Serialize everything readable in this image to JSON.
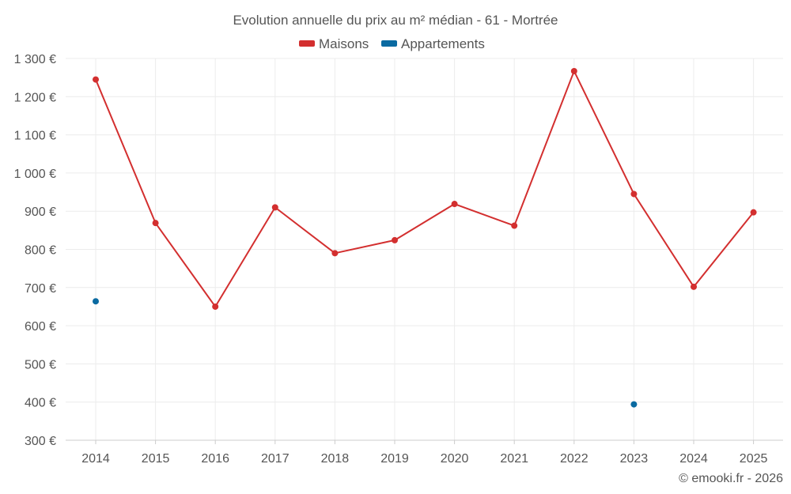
{
  "chart_data": {
    "type": "line",
    "title": "Evolution annuelle du prix au m² médian - 61 - Mortrée",
    "categories": [
      "2014",
      "2015",
      "2016",
      "2017",
      "2018",
      "2019",
      "2020",
      "2021",
      "2022",
      "2023",
      "2024",
      "2025"
    ],
    "series": [
      {
        "name": "Maisons",
        "color": "#d32f2f",
        "values": [
          1245,
          869,
          650,
          910,
          790,
          824,
          919,
          862,
          1267,
          945,
          702,
          897
        ]
      },
      {
        "name": "Appartements",
        "color": "#0a6aa1",
        "values": [
          664,
          null,
          null,
          null,
          null,
          null,
          null,
          null,
          null,
          394,
          null,
          null
        ]
      }
    ],
    "ylim": [
      300,
      1300
    ],
    "yticks": [
      300,
      400,
      500,
      600,
      700,
      800,
      900,
      1000,
      1100,
      1200,
      1300
    ],
    "ytick_labels": [
      "300 €",
      "400 €",
      "500 €",
      "600 €",
      "700 €",
      "800 €",
      "900 €",
      "1 000 €",
      "1 100 €",
      "1 200 €",
      "1 300 €"
    ],
    "xlabel": "",
    "ylabel": "",
    "grid": true,
    "legend_position": "top-center"
  },
  "credit": "© emooki.fr - 2026"
}
